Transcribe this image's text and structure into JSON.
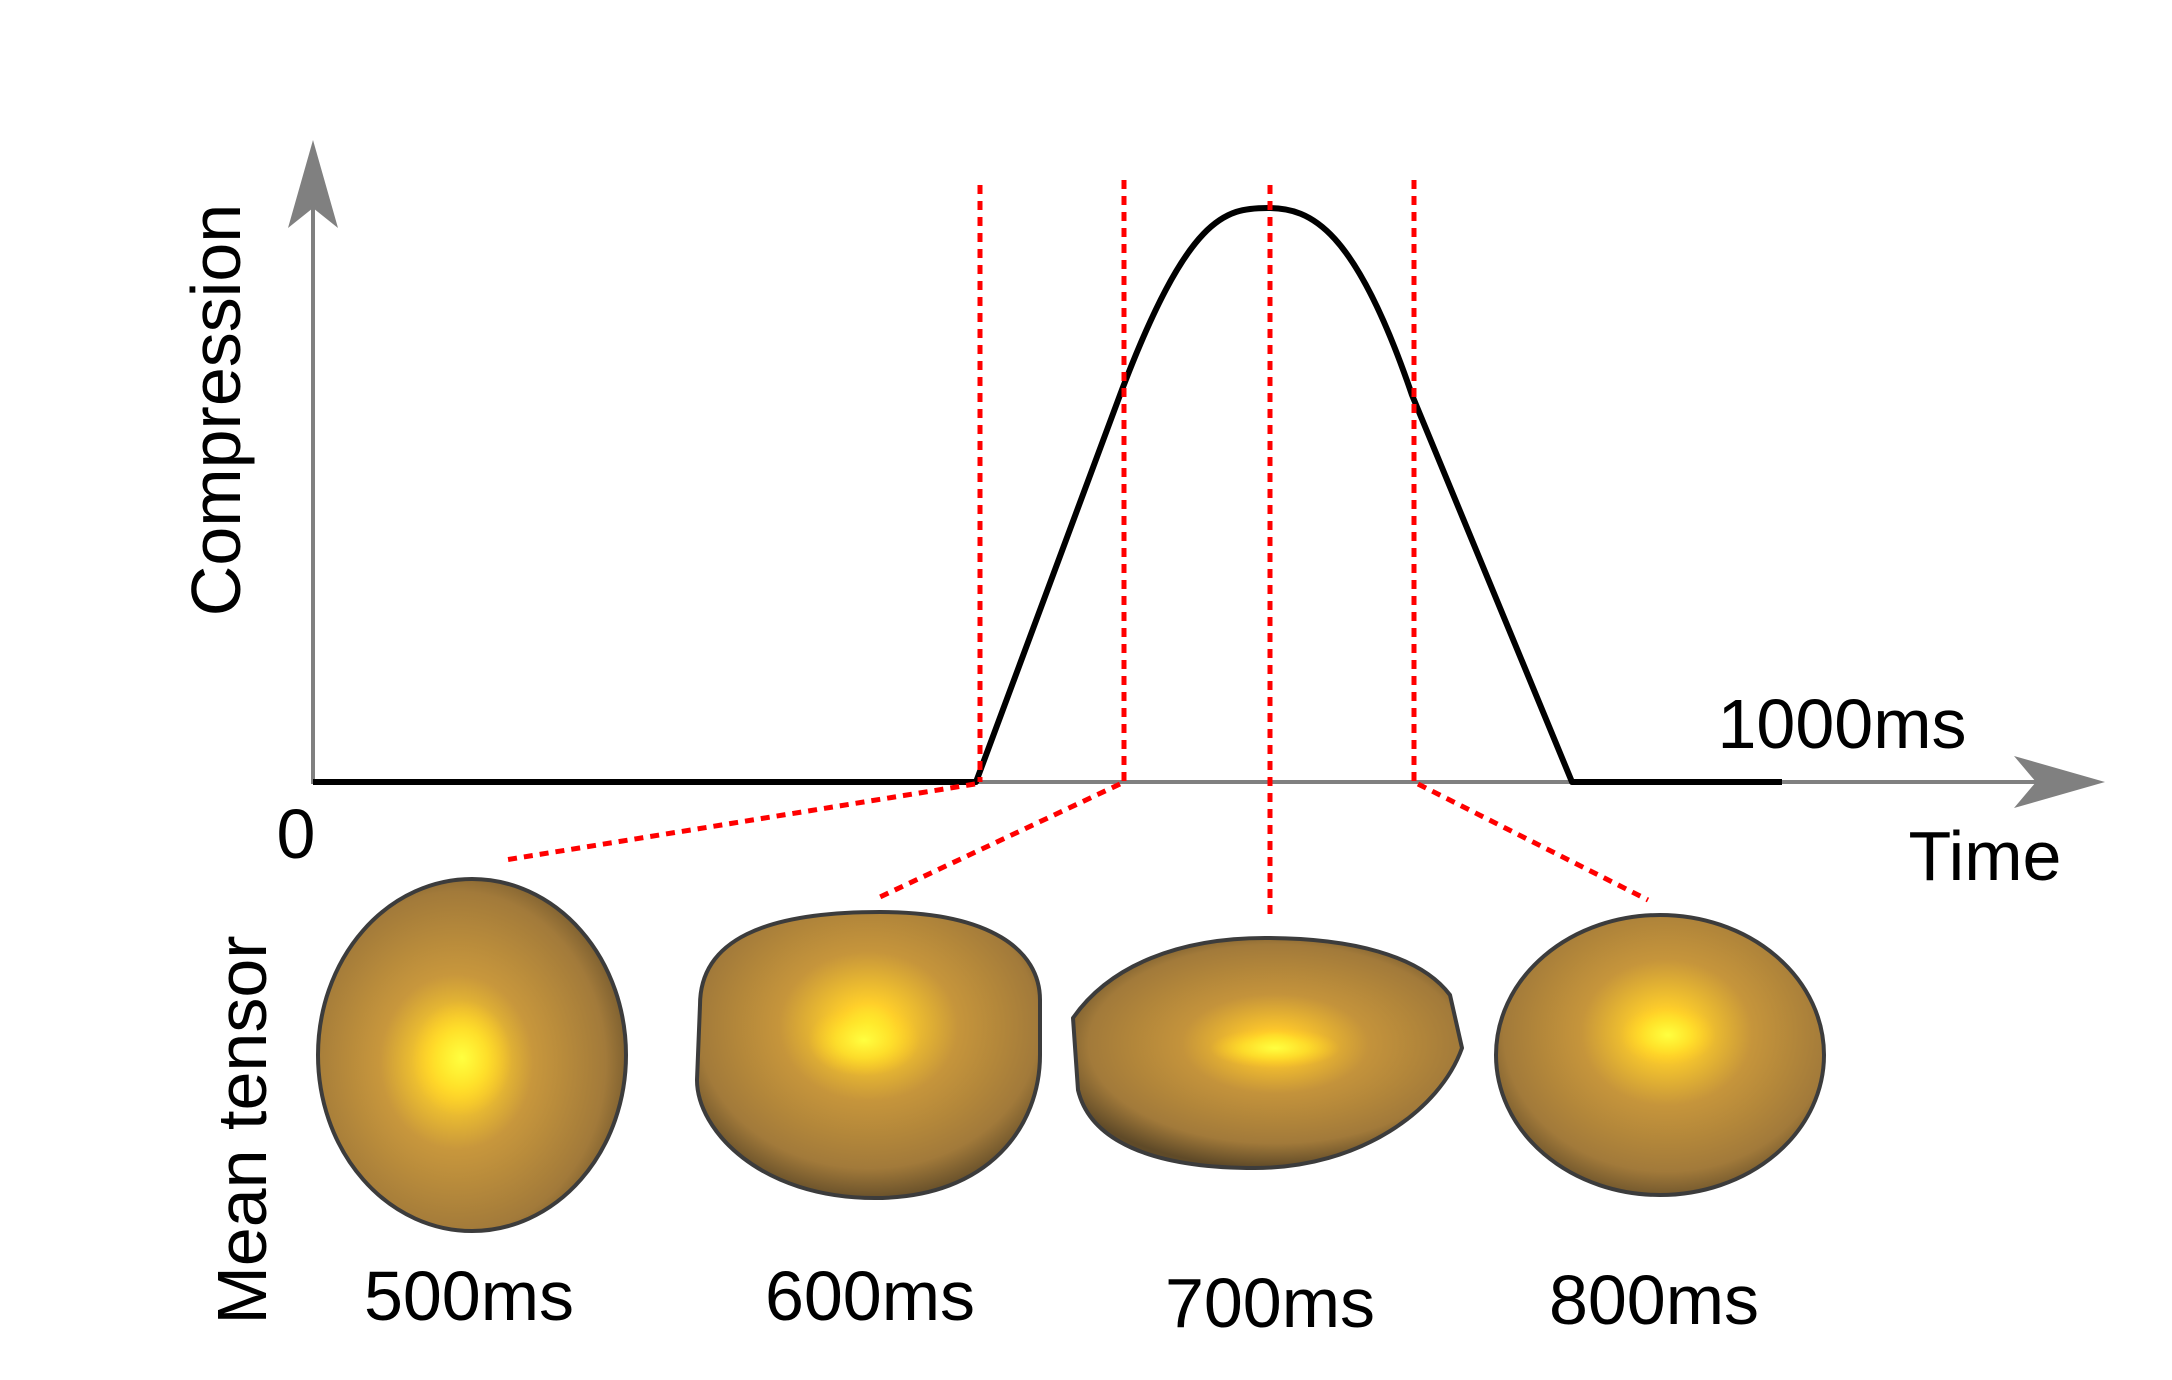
{
  "y_axis_label": "Compression",
  "x_axis_label": "Time",
  "origin_label": "0",
  "end_time_label": "1000ms",
  "row_label": "Mean tensor",
  "colors": {
    "curve": "#000000",
    "axis": "#808080",
    "markers": "#ff0000",
    "tensor_body": "#b08a3c",
    "tensor_core": "#ffee22"
  },
  "tensors": [
    {
      "label": "500ms",
      "time_ms": 500
    },
    {
      "label": "600ms",
      "time_ms": 600
    },
    {
      "label": "700ms",
      "time_ms": 700
    },
    {
      "label": "800ms",
      "time_ms": 800
    }
  ]
}
